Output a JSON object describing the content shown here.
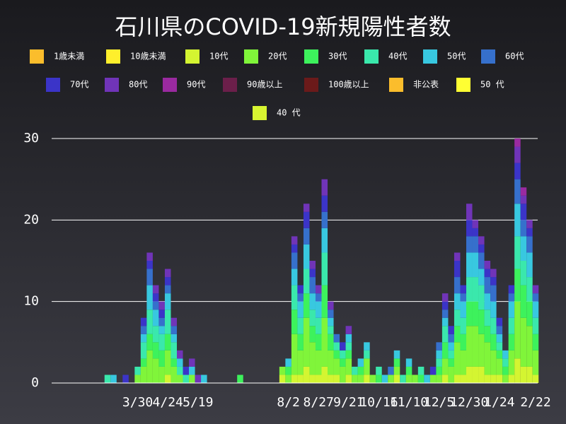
{
  "chart_data": {
    "type": "stacked_bar",
    "title": "石川県のCOVID-19新規陽性者数",
    "categories": [
      null,
      null,
      null,
      null,
      null,
      "3/30",
      null,
      null,
      null,
      null,
      "4/24",
      null,
      null,
      null,
      null,
      "5/19",
      null,
      null,
      null,
      null,
      null,
      null,
      null,
      null,
      null,
      null,
      null,
      null,
      null,
      null,
      "8/2",
      null,
      null,
      null,
      null,
      "8/27",
      null,
      null,
      null,
      null,
      "9/21",
      null,
      null,
      null,
      null,
      "10/16",
      null,
      null,
      null,
      null,
      "11/10",
      null,
      null,
      null,
      null,
      "12/5",
      null,
      null,
      null,
      null,
      "12/30",
      null,
      null,
      null,
      null,
      "1/24",
      null,
      null,
      null,
      null,
      null,
      "2/22"
    ],
    "ylim": [
      0,
      30
    ],
    "yticks": [
      0,
      10,
      20,
      30
    ],
    "grid": true,
    "series": [
      {
        "name": "1歳未満",
        "color": "#fbbd2c",
        "values": [
          0,
          0,
          0,
          0,
          0,
          0,
          0,
          0,
          0,
          0,
          0,
          0,
          0,
          0,
          0,
          0,
          0,
          0,
          0,
          0,
          0,
          0,
          0,
          0,
          0,
          0,
          0,
          0,
          0,
          0,
          0,
          0,
          0,
          0,
          0,
          0,
          0,
          0,
          0,
          0,
          0,
          0,
          0,
          0,
          0,
          0,
          0,
          0,
          0,
          0,
          0,
          0,
          0,
          0,
          0,
          0,
          0,
          0,
          0,
          0,
          0,
          0,
          0,
          0,
          0,
          0,
          0,
          0,
          0,
          0,
          0,
          0
        ]
      },
      {
        "name": "10歳未満",
        "color": "#ffef2c",
        "values": [
          0,
          0,
          0,
          0,
          0,
          0,
          0,
          0,
          0,
          0,
          0,
          0,
          0,
          0,
          0,
          0,
          0,
          0,
          0,
          0,
          0,
          0,
          0,
          0,
          0,
          0,
          0,
          0,
          0,
          0,
          0,
          0,
          0,
          0,
          0,
          0,
          0,
          0,
          0,
          0,
          0,
          0,
          0,
          0,
          0,
          0,
          0,
          0,
          0,
          0,
          0,
          0,
          0,
          0,
          0,
          0,
          0,
          0,
          0,
          0,
          0,
          0,
          0,
          0,
          0,
          0,
          0,
          0,
          0,
          0,
          0,
          0
        ]
      },
      {
        "name": "10代",
        "color": "#d4f531",
        "values": [
          0,
          0,
          0,
          0,
          0,
          0,
          0,
          0,
          0,
          0,
          1,
          0,
          0,
          0,
          0,
          0,
          0,
          0,
          0,
          0,
          0,
          0,
          0,
          0,
          0,
          0,
          0,
          0,
          0,
          1,
          0,
          1,
          1,
          2,
          1,
          1,
          2,
          1,
          1,
          0,
          1,
          0,
          0,
          1,
          0,
          0,
          0,
          0,
          1,
          0,
          0,
          0,
          0,
          0,
          0,
          0,
          1,
          0,
          1,
          1,
          2,
          2,
          2,
          1,
          1,
          1,
          0,
          1,
          3,
          2,
          2,
          1
        ]
      },
      {
        "name": "20代",
        "color": "#80f53a",
        "values": [
          0,
          0,
          0,
          0,
          0,
          1,
          2,
          4,
          3,
          2,
          3,
          2,
          1,
          0,
          1,
          0,
          0,
          0,
          0,
          0,
          0,
          0,
          0,
          0,
          0,
          0,
          0,
          0,
          0,
          1,
          1,
          5,
          3,
          6,
          4,
          3,
          6,
          3,
          2,
          2,
          2,
          1,
          1,
          2,
          1,
          0,
          0,
          1,
          1,
          0,
          1,
          1,
          0,
          0,
          1,
          1,
          2,
          2,
          4,
          3,
          5,
          5,
          4,
          4,
          3,
          2,
          1,
          3,
          7,
          6,
          5,
          3
        ]
      },
      {
        "name": "30代",
        "color": "#3df25c",
        "values": [
          0,
          0,
          0,
          0,
          0,
          0,
          1,
          2,
          2,
          2,
          2,
          1,
          0,
          0,
          0,
          0,
          0,
          0,
          0,
          0,
          0,
          0,
          1,
          0,
          0,
          0,
          0,
          0,
          0,
          0,
          1,
          3,
          2,
          3,
          2,
          2,
          4,
          2,
          1,
          1,
          1,
          0,
          1,
          0,
          0,
          1,
          0,
          0,
          1,
          0,
          1,
          0,
          1,
          0,
          0,
          1,
          2,
          1,
          2,
          2,
          3,
          3,
          3,
          2,
          2,
          1,
          1,
          2,
          4,
          4,
          3,
          2
        ]
      },
      {
        "name": "40代",
        "color": "#3ae8ac",
        "values": [
          1,
          0,
          0,
          0,
          0,
          1,
          2,
          3,
          2,
          2,
          3,
          2,
          1,
          1,
          0,
          0,
          0,
          0,
          0,
          0,
          0,
          0,
          0,
          0,
          0,
          0,
          0,
          0,
          0,
          0,
          0,
          3,
          2,
          3,
          2,
          2,
          4,
          1,
          1,
          1,
          1,
          1,
          0,
          1,
          0,
          1,
          0,
          0,
          0,
          1,
          0,
          0,
          1,
          0,
          0,
          1,
          2,
          1,
          2,
          2,
          3,
          3,
          3,
          2,
          2,
          1,
          1,
          2,
          4,
          3,
          3,
          2
        ]
      },
      {
        "name": "50代",
        "color": "#38c8e0",
        "values": [
          0,
          1,
          0,
          0,
          0,
          0,
          1,
          3,
          2,
          1,
          2,
          1,
          1,
          0,
          1,
          0,
          1,
          0,
          0,
          0,
          0,
          0,
          0,
          0,
          0,
          0,
          0,
          0,
          0,
          0,
          1,
          2,
          2,
          3,
          2,
          2,
          3,
          1,
          0,
          0,
          1,
          0,
          1,
          1,
          0,
          0,
          1,
          0,
          1,
          0,
          1,
          0,
          0,
          1,
          0,
          1,
          1,
          1,
          2,
          2,
          3,
          3,
          2,
          2,
          2,
          1,
          1,
          2,
          4,
          3,
          3,
          2
        ]
      },
      {
        "name": "60代",
        "color": "#3670cc",
        "values": [
          0,
          0,
          0,
          0,
          0,
          0,
          1,
          2,
          1,
          1,
          1,
          1,
          0,
          0,
          0,
          0,
          0,
          0,
          0,
          0,
          0,
          0,
          0,
          0,
          0,
          0,
          0,
          0,
          0,
          0,
          0,
          2,
          1,
          2,
          2,
          1,
          2,
          1,
          1,
          0,
          0,
          0,
          0,
          0,
          0,
          0,
          0,
          1,
          0,
          0,
          0,
          0,
          0,
          0,
          0,
          1,
          1,
          1,
          2,
          1,
          2,
          2,
          2,
          2,
          2,
          1,
          0,
          1,
          3,
          2,
          2,
          1
        ]
      },
      {
        "name": "70代",
        "color": "#3b34c8",
        "values": [
          0,
          0,
          0,
          1,
          0,
          0,
          1,
          1,
          1,
          1,
          1,
          0,
          0,
          1,
          0,
          0,
          0,
          0,
          0,
          0,
          0,
          0,
          0,
          0,
          0,
          0,
          0,
          0,
          0,
          0,
          0,
          1,
          1,
          2,
          1,
          0,
          2,
          0,
          0,
          1,
          0,
          0,
          0,
          0,
          0,
          0,
          0,
          0,
          0,
          0,
          0,
          0,
          0,
          0,
          1,
          0,
          1,
          1,
          2,
          1,
          2,
          1,
          1,
          1,
          1,
          1,
          0,
          1,
          2,
          2,
          1,
          0
        ]
      },
      {
        "name": "80代",
        "color": "#7034b8",
        "values": [
          0,
          0,
          0,
          0,
          0,
          0,
          0,
          1,
          1,
          1,
          1,
          1,
          1,
          0,
          1,
          1,
          0,
          0,
          0,
          0,
          0,
          0,
          0,
          0,
          0,
          0,
          0,
          0,
          0,
          0,
          0,
          1,
          0,
          1,
          1,
          1,
          2,
          1,
          0,
          0,
          1,
          0,
          0,
          0,
          0,
          0,
          0,
          0,
          0,
          0,
          0,
          0,
          0,
          0,
          0,
          0,
          1,
          0,
          1,
          0,
          2,
          1,
          1,
          1,
          1,
          0,
          0,
          0,
          2,
          1,
          1,
          1
        ]
      },
      {
        "name": "90代",
        "color": "#9a2aa0",
        "values": [
          0,
          0,
          0,
          0,
          0,
          0,
          0,
          0,
          0,
          0,
          0,
          0,
          0,
          0,
          0,
          0,
          0,
          0,
          0,
          0,
          0,
          0,
          0,
          0,
          0,
          0,
          0,
          0,
          0,
          0,
          0,
          0,
          0,
          0,
          0,
          0,
          0,
          0,
          0,
          0,
          0,
          0,
          0,
          0,
          0,
          0,
          0,
          0,
          0,
          0,
          0,
          0,
          0,
          0,
          0,
          0,
          0,
          0,
          0,
          0,
          0,
          0,
          0,
          0,
          0,
          0,
          0,
          0,
          1,
          1,
          0,
          0
        ]
      },
      {
        "name": "90歳以上",
        "color": "#6b1f4a",
        "values": [
          0,
          0,
          0,
          0,
          0,
          0,
          0,
          0,
          0,
          0,
          0,
          0,
          0,
          0,
          0,
          0,
          0,
          0,
          0,
          0,
          0,
          0,
          0,
          0,
          0,
          0,
          0,
          0,
          0,
          0,
          0,
          0,
          0,
          0,
          0,
          0,
          0,
          0,
          0,
          0,
          0,
          0,
          0,
          0,
          0,
          0,
          0,
          0,
          0,
          0,
          0,
          0,
          0,
          0,
          0,
          0,
          0,
          0,
          0,
          0,
          0,
          0,
          0,
          0,
          0,
          0,
          0,
          0,
          0,
          0,
          0,
          0
        ]
      },
      {
        "name": "100歳以上",
        "color": "#6b1a1a",
        "values": [
          0,
          0,
          0,
          0,
          0,
          0,
          0,
          0,
          0,
          0,
          0,
          0,
          0,
          0,
          0,
          0,
          0,
          0,
          0,
          0,
          0,
          0,
          0,
          0,
          0,
          0,
          0,
          0,
          0,
          0,
          0,
          0,
          0,
          0,
          0,
          0,
          0,
          0,
          0,
          0,
          0,
          0,
          0,
          0,
          0,
          0,
          0,
          0,
          0,
          0,
          0,
          0,
          0,
          0,
          0,
          0,
          0,
          0,
          0,
          0,
          0,
          0,
          0,
          0,
          0,
          0,
          0,
          0,
          0,
          0,
          0,
          0
        ]
      },
      {
        "name": "非公表",
        "color": "#fbbd2c",
        "values": [
          0,
          0,
          0,
          0,
          0,
          0,
          0,
          0,
          0,
          0,
          0,
          0,
          0,
          0,
          0,
          0,
          0,
          0,
          0,
          0,
          0,
          0,
          0,
          0,
          0,
          0,
          0,
          0,
          0,
          0,
          0,
          0,
          0,
          0,
          0,
          0,
          0,
          0,
          0,
          0,
          0,
          0,
          0,
          0,
          0,
          0,
          0,
          0,
          0,
          0,
          0,
          0,
          0,
          0,
          0,
          0,
          0,
          0,
          0,
          0,
          0,
          0,
          0,
          0,
          0,
          0,
          0,
          0,
          0,
          0,
          0,
          0
        ]
      },
      {
        "name": "50 代",
        "color": "#ffff33",
        "values": [
          0,
          0,
          0,
          0,
          0,
          0,
          0,
          0,
          0,
          0,
          0,
          0,
          0,
          0,
          0,
          0,
          0,
          0,
          0,
          0,
          0,
          0,
          0,
          0,
          0,
          0,
          0,
          0,
          0,
          0,
          0,
          0,
          0,
          0,
          0,
          0,
          0,
          0,
          0,
          0,
          0,
          0,
          0,
          0,
          0,
          0,
          0,
          0,
          0,
          0,
          0,
          0,
          0,
          0,
          0,
          0,
          0,
          0,
          0,
          0,
          0,
          0,
          0,
          0,
          0,
          0,
          0,
          0,
          0,
          0,
          0,
          0
        ]
      },
      {
        "name": "40 代",
        "color": "#d8f531",
        "values": [
          0,
          0,
          0,
          0,
          0,
          0,
          0,
          0,
          0,
          0,
          0,
          0,
          0,
          0,
          0,
          0,
          0,
          0,
          0,
          0,
          0,
          0,
          0,
          0,
          0,
          0,
          0,
          0,
          0,
          0,
          0,
          0,
          0,
          0,
          0,
          0,
          0,
          0,
          0,
          0,
          0,
          0,
          0,
          0,
          0,
          0,
          0,
          0,
          0,
          0,
          0,
          0,
          0,
          0,
          0,
          0,
          0,
          0,
          0,
          0,
          0,
          0,
          0,
          0,
          0,
          0,
          0,
          0,
          0,
          0,
          0,
          0
        ]
      }
    ]
  }
}
